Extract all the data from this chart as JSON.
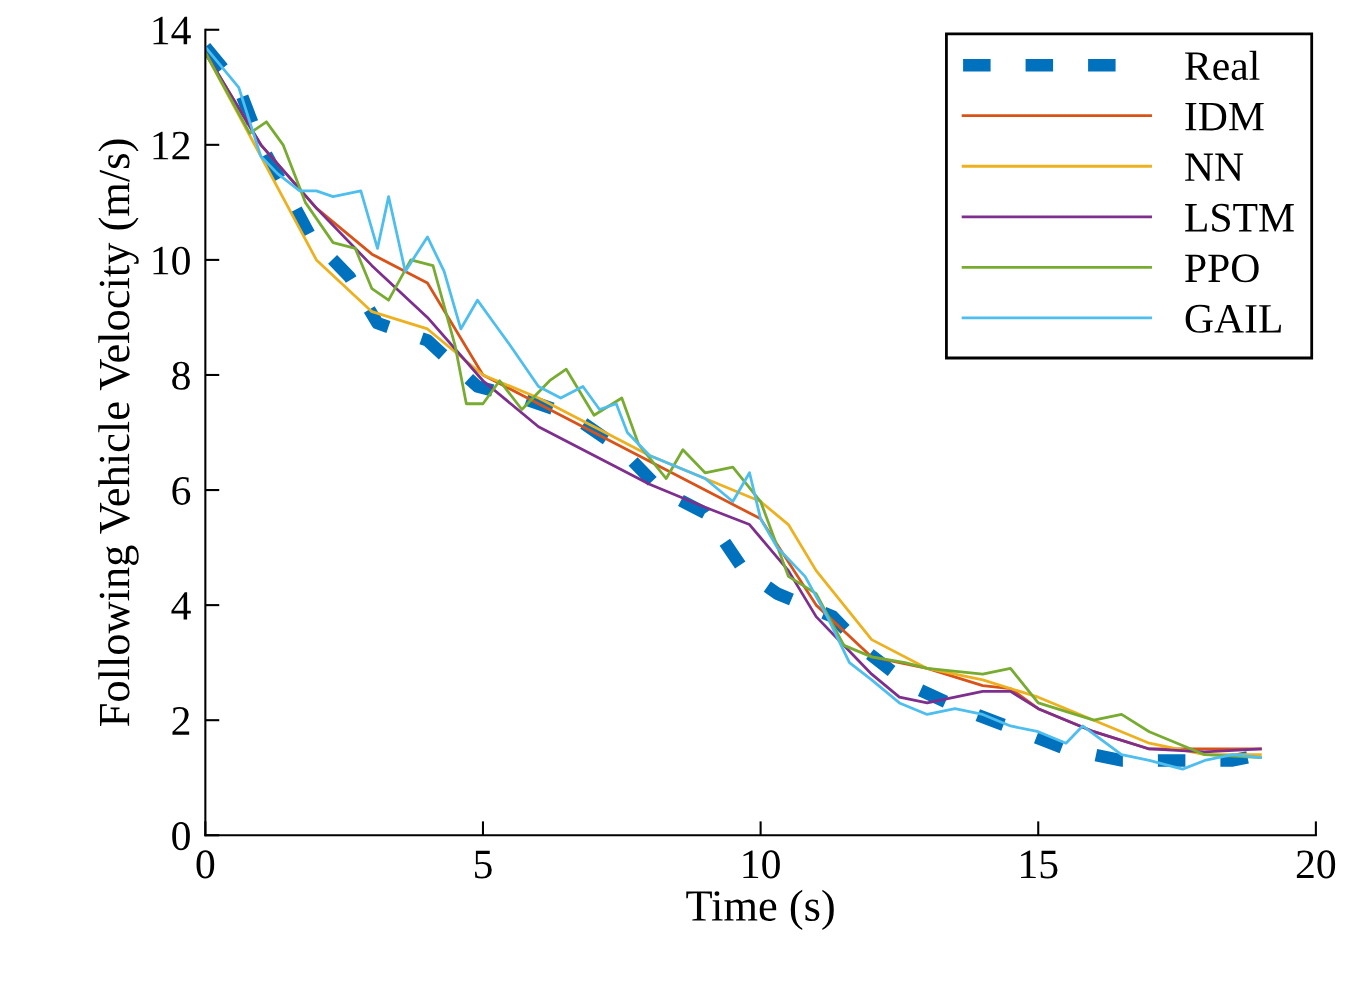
{
  "chart_data": {
    "type": "line",
    "xlabel": "Time (s)",
    "ylabel": "Following Vehicle Velocity (m/s)",
    "xlim": [
      0,
      20
    ],
    "ylim": [
      0,
      14
    ],
    "xticks": [
      0,
      5,
      10,
      15,
      20
    ],
    "yticks": [
      0,
      2,
      4,
      6,
      8,
      10,
      12,
      14
    ],
    "grid": false,
    "legend": "top right",
    "series": [
      {
        "name": "Real",
        "color": "#0072bd",
        "line_style": "dashed",
        "x": [
          0,
          0.6,
          1.0,
          1.4,
          1.9,
          2.6,
          3.1,
          4.0,
          4.9,
          5.7,
          6.6,
          7.5,
          8.2,
          9.0,
          9.7,
          10.3,
          11.3,
          11.9,
          12.7,
          13.6,
          14.7,
          15.5,
          16.5,
          17.5,
          18.5,
          19.0
        ],
        "values": [
          13.7,
          13.0,
          12.0,
          11.3,
          10.4,
          9.7,
          8.9,
          8.6,
          7.8,
          7.6,
          7.3,
          6.7,
          6.0,
          5.6,
          4.6,
          4.2,
          3.8,
          3.2,
          2.6,
          2.2,
          1.8,
          1.5,
          1.3,
          1.3,
          1.3,
          1.4
        ]
      },
      {
        "name": "IDM",
        "color": "#d95319",
        "x": [
          0,
          1,
          2,
          3,
          4,
          5,
          6,
          7,
          8,
          9,
          10,
          11,
          12,
          13,
          14,
          14.5,
          15,
          16,
          17,
          18,
          19
        ],
        "values": [
          13.6,
          12.0,
          10.9,
          10.1,
          9.6,
          8.0,
          7.5,
          7.0,
          6.5,
          6.0,
          5.5,
          4.0,
          3.1,
          2.9,
          2.6,
          2.55,
          2.2,
          1.8,
          1.5,
          1.5,
          1.5
        ]
      },
      {
        "name": "NN",
        "color": "#edb120",
        "x": [
          0,
          1,
          2,
          3,
          4,
          5,
          6,
          7,
          8,
          9,
          10,
          10.5,
          11,
          12,
          13,
          14,
          15,
          16,
          17,
          18,
          19
        ],
        "values": [
          13.6,
          11.8,
          10.0,
          9.1,
          8.8,
          8.0,
          7.6,
          7.1,
          6.6,
          6.2,
          5.8,
          5.4,
          4.6,
          3.4,
          2.9,
          2.7,
          2.4,
          2.0,
          1.6,
          1.4,
          1.4
        ]
      },
      {
        "name": "LSTM",
        "color": "#7e2f8e",
        "x": [
          0,
          1,
          2,
          3,
          4,
          5,
          6,
          7,
          8,
          9,
          9.8,
          10.5,
          11,
          12,
          12.5,
          13,
          14,
          14.5,
          15,
          16,
          17,
          18,
          19
        ],
        "values": [
          13.6,
          12.0,
          10.9,
          9.9,
          9.0,
          7.9,
          7.1,
          6.6,
          6.1,
          5.7,
          5.4,
          4.6,
          3.8,
          2.8,
          2.4,
          2.3,
          2.5,
          2.5,
          2.2,
          1.8,
          1.5,
          1.45,
          1.5
        ]
      },
      {
        "name": "PPO",
        "color": "#77ac30",
        "x": [
          0,
          0.8,
          1.1,
          1.4,
          1.8,
          2.3,
          2.7,
          3.0,
          3.3,
          3.7,
          4.1,
          4.5,
          4.7,
          5.0,
          5.3,
          5.7,
          6.2,
          6.5,
          7.0,
          7.5,
          7.8,
          8.3,
          8.6,
          9.0,
          9.5,
          10.0,
          10.5,
          11.0,
          11.5,
          12.0,
          12.6,
          13.0,
          14.0,
          14.5,
          15.0,
          16.0,
          16.5,
          17.0,
          17.5,
          18.0,
          19.0
        ],
        "values": [
          13.6,
          12.2,
          12.4,
          12.0,
          11.0,
          10.3,
          10.2,
          9.5,
          9.3,
          10.0,
          9.9,
          8.5,
          7.5,
          7.5,
          7.9,
          7.4,
          7.9,
          8.1,
          7.3,
          7.6,
          6.8,
          6.2,
          6.7,
          6.3,
          6.4,
          5.8,
          4.5,
          4.2,
          3.3,
          3.1,
          3.0,
          2.9,
          2.8,
          2.9,
          2.3,
          2.0,
          2.1,
          1.8,
          1.6,
          1.4,
          1.35
        ]
      },
      {
        "name": "GAIL",
        "color": "#4dbeee",
        "x": [
          0,
          0.6,
          1.0,
          1.3,
          1.7,
          2.0,
          2.3,
          2.8,
          3.1,
          3.3,
          3.6,
          4.0,
          4.3,
          4.6,
          4.9,
          5.2,
          5.5,
          6.0,
          6.4,
          6.8,
          7.1,
          7.4,
          7.6,
          8.0,
          8.5,
          9.0,
          9.5,
          9.8,
          10.0,
          10.3,
          10.8,
          11.2,
          11.6,
          12.0,
          12.5,
          13.0,
          13.5,
          14.0,
          14.5,
          15.0,
          15.5,
          15.8,
          16.5,
          17.0,
          17.6,
          18.0,
          18.5,
          19.0
        ],
        "values": [
          13.7,
          13.0,
          11.8,
          11.5,
          11.2,
          11.2,
          11.1,
          11.2,
          10.2,
          11.1,
          9.8,
          10.4,
          9.8,
          8.8,
          9.3,
          8.9,
          8.5,
          7.8,
          7.6,
          7.8,
          7.4,
          7.5,
          7.0,
          6.6,
          6.4,
          6.2,
          5.8,
          6.3,
          5.5,
          5.0,
          4.5,
          3.8,
          3.0,
          2.7,
          2.3,
          2.1,
          2.2,
          2.1,
          1.9,
          1.8,
          1.6,
          1.9,
          1.4,
          1.3,
          1.15,
          1.3,
          1.4,
          1.35
        ]
      }
    ]
  }
}
